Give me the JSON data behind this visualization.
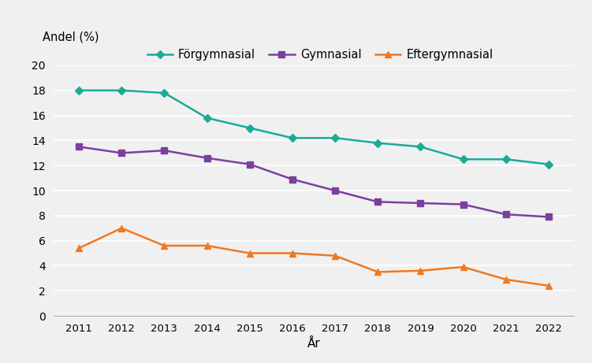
{
  "years": [
    2011,
    2012,
    2013,
    2014,
    2015,
    2016,
    2017,
    2018,
    2019,
    2020,
    2021,
    2022
  ],
  "forgymnasial": [
    18.0,
    18.0,
    17.8,
    15.8,
    15.0,
    14.2,
    14.2,
    13.8,
    13.5,
    12.5,
    12.5,
    12.1
  ],
  "gymnasial": [
    13.5,
    13.0,
    13.2,
    12.6,
    12.1,
    10.9,
    10.0,
    9.1,
    9.0,
    8.9,
    8.1,
    7.9
  ],
  "eftergymnasial": [
    5.4,
    7.0,
    5.6,
    5.6,
    5.0,
    5.0,
    4.8,
    3.5,
    3.6,
    3.9,
    2.9,
    2.4
  ],
  "forgymnasial_color": "#1aab96",
  "gymnasial_color": "#7b3fa0",
  "eftergymnasial_color": "#f07820",
  "ylabel": "Andel (%)",
  "xlabel": "År",
  "ylim": [
    0,
    20
  ],
  "yticks": [
    0,
    2,
    4,
    6,
    8,
    10,
    12,
    14,
    16,
    18,
    20
  ],
  "legend_forgymnasial": "Förgymnasial",
  "legend_gymnasial": "Gymnasial",
  "legend_eftergymnasial": "Eftergymnasial",
  "plot_bg_color": "#f0f0f0",
  "fig_bg_color": "#f0f0f0",
  "grid_color": "#ffffff"
}
